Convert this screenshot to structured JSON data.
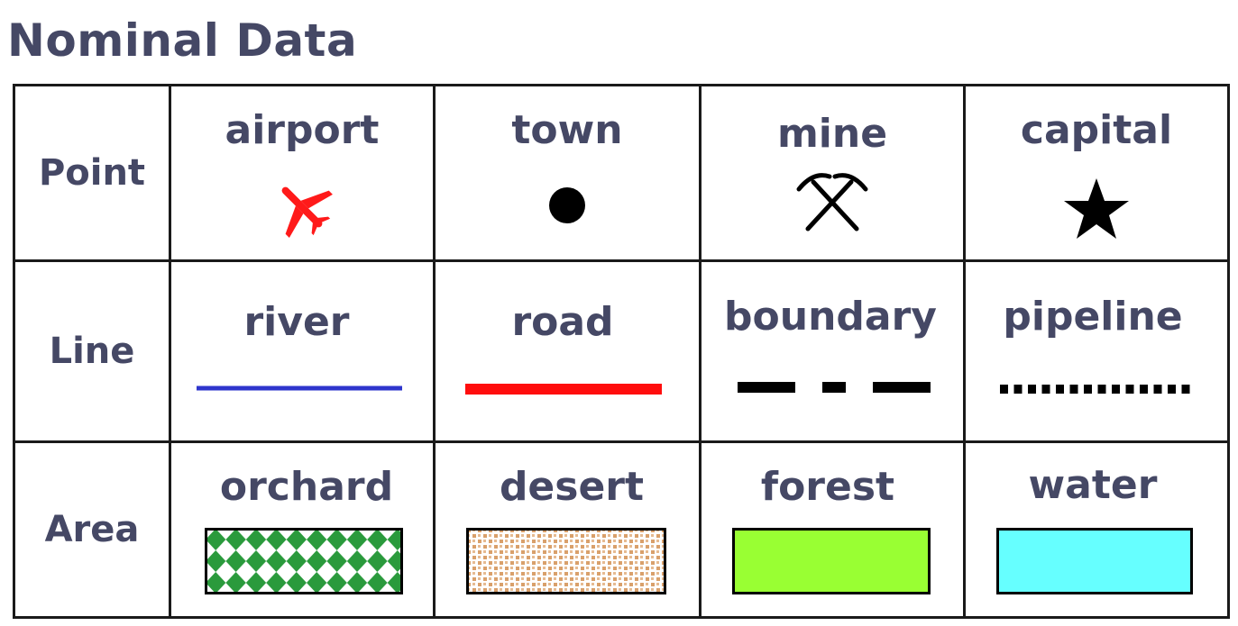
{
  "title": "Nominal Data",
  "rows": [
    {
      "label": "Point",
      "items": [
        {
          "label": "airport",
          "icon": "airplane-icon",
          "color": "#ff1a1a"
        },
        {
          "label": "town",
          "icon": "dot-icon",
          "color": "#000000"
        },
        {
          "label": "mine",
          "icon": "crossed-pickaxes-icon",
          "color": "#000000"
        },
        {
          "label": "capital",
          "icon": "star-icon",
          "color": "#000000"
        }
      ]
    },
    {
      "label": "Line",
      "items": [
        {
          "label": "river",
          "icon": "solid-line-icon",
          "color": "#2e35cc"
        },
        {
          "label": "road",
          "icon": "solid-line-icon",
          "color": "#ff0d0d"
        },
        {
          "label": "boundary",
          "icon": "dash-dot-line-icon",
          "color": "#000000"
        },
        {
          "label": "pipeline",
          "icon": "dotted-line-icon",
          "color": "#000000"
        }
      ]
    },
    {
      "label": "Area",
      "items": [
        {
          "label": "orchard",
          "icon": "diamond-pattern-fill",
          "color": "#2a9a3c"
        },
        {
          "label": "desert",
          "icon": "stipple-pattern-fill",
          "color": "#d9a06b"
        },
        {
          "label": "forest",
          "icon": "solid-fill",
          "color": "#99ff33"
        },
        {
          "label": "water",
          "icon": "solid-fill",
          "color": "#66ffff"
        }
      ]
    }
  ]
}
